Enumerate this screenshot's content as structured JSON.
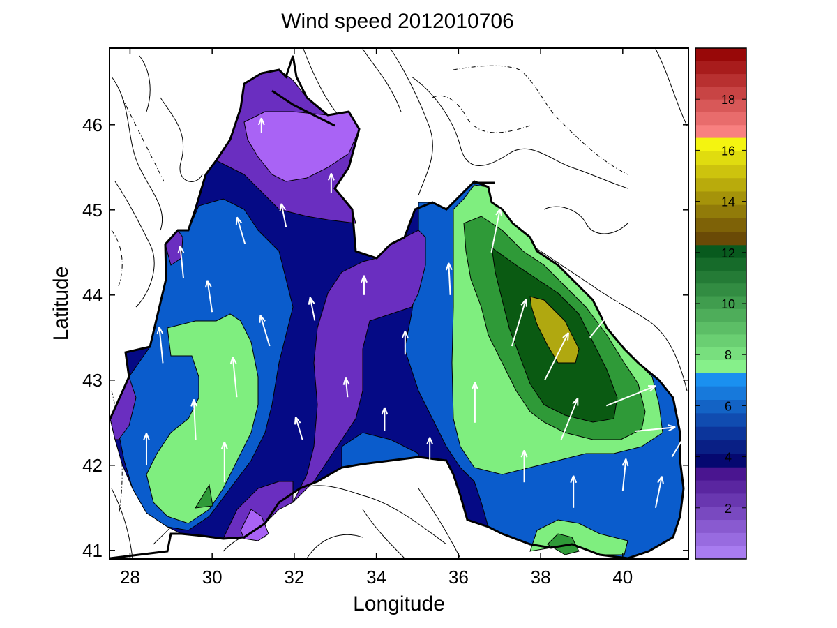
{
  "chart_data": {
    "type": "heatmap",
    "title": "Wind speed 2012010706",
    "xlabel": "Longitude",
    "ylabel": "Latitude",
    "xlim": [
      27.5,
      41.6
    ],
    "ylim": [
      40.9,
      46.9
    ],
    "x_ticks": [
      28,
      30,
      32,
      34,
      36,
      38,
      40
    ],
    "x_tick_labels": [
      "28",
      "30",
      "32",
      "34",
      "36",
      "38",
      "40"
    ],
    "y_ticks": [
      41,
      42,
      43,
      44,
      45,
      46
    ],
    "y_tick_labels": [
      "41",
      "42",
      "43",
      "44",
      "45",
      "46"
    ],
    "colorbar": {
      "range": [
        0,
        20
      ],
      "ticks": [
        2,
        4,
        6,
        8,
        10,
        12,
        14,
        16,
        18
      ],
      "tick_labels": [
        "2",
        "4",
        "6",
        "8",
        "10",
        "12",
        "14",
        "16",
        "18"
      ],
      "bands": [
        {
          "from": 0,
          "to": 3.6,
          "bottom_color": "#a87cf0",
          "top_color": "#4a1590"
        },
        {
          "from": 3.6,
          "to": 7.3,
          "bottom_color": "#050870",
          "top_color": "#1a90f0"
        },
        {
          "from": 7.3,
          "to": 12.3,
          "bottom_color": "#86f08a",
          "top_color": "#085a1e"
        },
        {
          "from": 12.3,
          "to": 16.5,
          "bottom_color": "#6a4a06",
          "top_color": "#f4f410"
        },
        {
          "from": 16.5,
          "to": 20,
          "bottom_color": "#f88080",
          "top_color": "#980808"
        }
      ]
    },
    "level_colors": {
      "lt2": "#a963f5",
      "2to4": "#6a2ec0",
      "4to5": "#050a85",
      "5to7": "#0a5ccc",
      "8to9": "#7fee7f",
      "9to11": "#2f9a38",
      "11to12": "#0a5a12",
      "13to14": "#b0a810"
    },
    "wind_field": [
      {
        "lon": 28.4,
        "lat": 42.0,
        "u": 0.0,
        "v": 1.0,
        "speed": 6
      },
      {
        "lon": 28.8,
        "lat": 43.2,
        "u": -0.1,
        "v": 1.0,
        "speed": 7
      },
      {
        "lon": 29.3,
        "lat": 44.2,
        "u": -0.1,
        "v": 1.0,
        "speed": 6
      },
      {
        "lon": 29.6,
        "lat": 42.3,
        "u": -0.05,
        "v": 1.0,
        "speed": 8
      },
      {
        "lon": 30.0,
        "lat": 43.8,
        "u": -0.15,
        "v": 1.0,
        "speed": 6
      },
      {
        "lon": 30.3,
        "lat": 41.8,
        "u": 0.0,
        "v": 1.0,
        "speed": 8
      },
      {
        "lon": 30.6,
        "lat": 42.8,
        "u": -0.1,
        "v": 1.0,
        "speed": 8
      },
      {
        "lon": 30.8,
        "lat": 44.6,
        "u": -0.3,
        "v": 1.0,
        "speed": 5
      },
      {
        "lon": 31.2,
        "lat": 45.9,
        "u": 0.0,
        "v": 1.0,
        "speed": 2
      },
      {
        "lon": 31.4,
        "lat": 43.4,
        "u": -0.3,
        "v": 1.0,
        "speed": 6
      },
      {
        "lon": 31.8,
        "lat": 44.8,
        "u": -0.2,
        "v": 1.0,
        "speed": 4
      },
      {
        "lon": 32.2,
        "lat": 42.3,
        "u": -0.3,
        "v": 1.0,
        "speed": 4
      },
      {
        "lon": 32.5,
        "lat": 43.7,
        "u": -0.2,
        "v": 1.0,
        "speed": 4
      },
      {
        "lon": 32.9,
        "lat": 45.2,
        "u": 0.0,
        "v": 1.0,
        "speed": 3
      },
      {
        "lon": 33.3,
        "lat": 42.8,
        "u": -0.1,
        "v": 1.0,
        "speed": 3
      },
      {
        "lon": 33.7,
        "lat": 44.0,
        "u": 0.0,
        "v": 1.0,
        "speed": 3
      },
      {
        "lon": 34.2,
        "lat": 42.4,
        "u": 0.0,
        "v": 1.0,
        "speed": 4
      },
      {
        "lon": 34.7,
        "lat": 43.3,
        "u": 0.0,
        "v": 1.0,
        "speed": 4
      },
      {
        "lon": 35.3,
        "lat": 42.0,
        "u": 0.0,
        "v": 1.0,
        "speed": 5
      },
      {
        "lon": 35.8,
        "lat": 44.0,
        "u": -0.05,
        "v": 1.0,
        "speed": 6
      },
      {
        "lon": 36.4,
        "lat": 42.5,
        "u": 0.0,
        "v": 1.0,
        "speed": 8
      },
      {
        "lon": 36.8,
        "lat": 44.5,
        "u": 0.2,
        "v": 1.0,
        "speed": 9
      },
      {
        "lon": 37.3,
        "lat": 43.4,
        "u": 0.3,
        "v": 1.0,
        "speed": 10
      },
      {
        "lon": 37.6,
        "lat": 41.8,
        "u": 0.0,
        "v": 1.0,
        "speed": 6
      },
      {
        "lon": 38.1,
        "lat": 43.0,
        "u": 0.5,
        "v": 1.0,
        "speed": 11
      },
      {
        "lon": 38.5,
        "lat": 42.3,
        "u": 0.4,
        "v": 1.0,
        "speed": 9
      },
      {
        "lon": 38.8,
        "lat": 41.5,
        "u": 0.0,
        "v": 1.0,
        "speed": 6
      },
      {
        "lon": 39.2,
        "lat": 43.5,
        "u": 0.8,
        "v": 1.0,
        "speed": 11
      },
      {
        "lon": 39.6,
        "lat": 42.7,
        "u": 1.0,
        "v": 0.4,
        "speed": 11
      },
      {
        "lon": 40.0,
        "lat": 41.7,
        "u": 0.1,
        "v": 1.0,
        "speed": 6
      },
      {
        "lon": 40.3,
        "lat": 42.4,
        "u": 1.0,
        "v": 0.1,
        "speed": 8
      },
      {
        "lon": 40.8,
        "lat": 41.5,
        "u": 0.2,
        "v": 1.0,
        "speed": 6
      },
      {
        "lon": 41.2,
        "lat": 42.1,
        "u": 0.6,
        "v": 1.0,
        "speed": 6
      }
    ]
  }
}
